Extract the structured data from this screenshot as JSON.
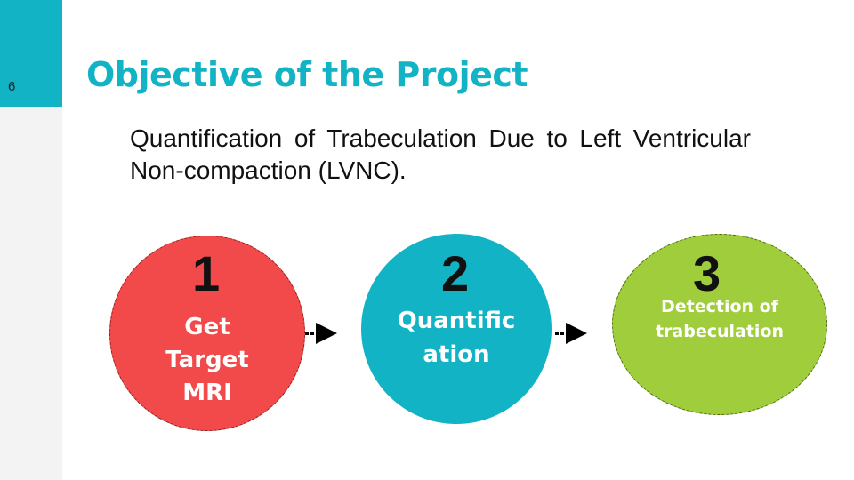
{
  "slide": {
    "number": "6",
    "title": "Objective of the Project"
  },
  "objective_text": "Quantification of Trabeculation Due to Left Ventricular Non-compaction (LVNC).",
  "steps": [
    {
      "number": "1",
      "label": "Get\nTarget\nMRI",
      "color": "#f24a4a"
    },
    {
      "number": "2",
      "label": "Quantific\nation",
      "color": "#12b3c4"
    },
    {
      "number": "3",
      "label": "Detection of\ntrabeculation",
      "color": "#9fcd3c"
    }
  ],
  "colors": {
    "accent": "#12b3c4"
  }
}
